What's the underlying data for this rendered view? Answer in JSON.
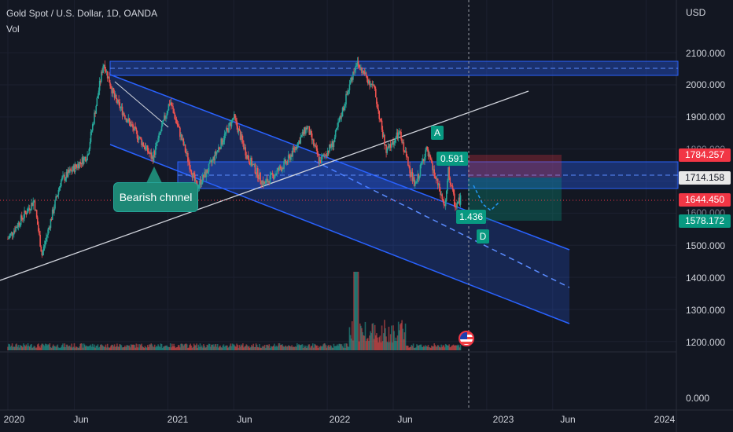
{
  "header": {
    "title": "Gold Spot / U.S. Dollar, 1D, OANDA",
    "vol_label": "Vol"
  },
  "axis": {
    "currency": "USD",
    "y_labels": [
      "2100.000",
      "2000.000",
      "1900.000",
      "1800.000",
      "1700.000",
      "1600.000",
      "1500.000",
      "1400.000",
      "1300.000",
      "1200.000",
      "0.000"
    ],
    "x_labels": [
      "2020",
      "Jun",
      "2021",
      "Jun",
      "2022",
      "Jun",
      "2023",
      "Jun",
      "2024"
    ]
  },
  "price_tags": {
    "stop": "1784.257",
    "entry": "1714.158",
    "last": "1644.450",
    "target": "1578.172"
  },
  "annotations": {
    "callout": "Bearish chnnel",
    "point_a": "A",
    "point_d": "D",
    "ratio_1": "0.591",
    "ratio_2": "1.436",
    "flag_icon": "us-flag-icon"
  },
  "colors": {
    "background": "#131722",
    "up": "#26a69a",
    "down": "#ef5350",
    "channel": "#2962ff",
    "stop_tag": "#f23645",
    "target_tag": "#089981"
  },
  "chart_data": {
    "type": "candlestick",
    "symbol": "Gold Spot / U.S. Dollar",
    "timeframe": "1D",
    "exchange": "OANDA",
    "x_range": [
      "2020-01-01",
      "2024-03-01"
    ],
    "ylim": [
      1200,
      2100
    ],
    "price_path": [
      [
        "2020-01-01",
        1520
      ],
      [
        "2020-03-01",
        1640
      ],
      [
        "2020-03-19",
        1470
      ],
      [
        "2020-05-01",
        1700
      ],
      [
        "2020-07-01",
        1780
      ],
      [
        "2020-08-07",
        2070
      ],
      [
        "2020-09-01",
        1960
      ],
      [
        "2020-10-01",
        1890
      ],
      [
        "2020-11-27",
        1770
      ],
      [
        "2021-01-06",
        1950
      ],
      [
        "2021-03-08",
        1680
      ],
      [
        "2021-04-01",
        1730
      ],
      [
        "2021-06-01",
        1900
      ],
      [
        "2021-07-01",
        1780
      ],
      [
        "2021-08-09",
        1690
      ],
      [
        "2021-10-01",
        1760
      ],
      [
        "2021-11-16",
        1870
      ],
      [
        "2021-12-15",
        1760
      ],
      [
        "2022-01-15",
        1820
      ],
      [
        "2022-03-08",
        2070
      ],
      [
        "2022-04-18",
        1990
      ],
      [
        "2022-05-16",
        1790
      ],
      [
        "2022-06-15",
        1850
      ],
      [
        "2022-07-21",
        1680
      ],
      [
        "2022-08-15",
        1800
      ],
      [
        "2022-09-28",
        1615
      ],
      [
        "2022-10-05",
        1730
      ],
      [
        "2022-10-21",
        1620
      ],
      [
        "2022-11-02",
        1644
      ]
    ],
    "levels": {
      "stop": 1784.257,
      "entry": 1714.158,
      "last": 1644.45,
      "target": 1578.172
    }
  }
}
